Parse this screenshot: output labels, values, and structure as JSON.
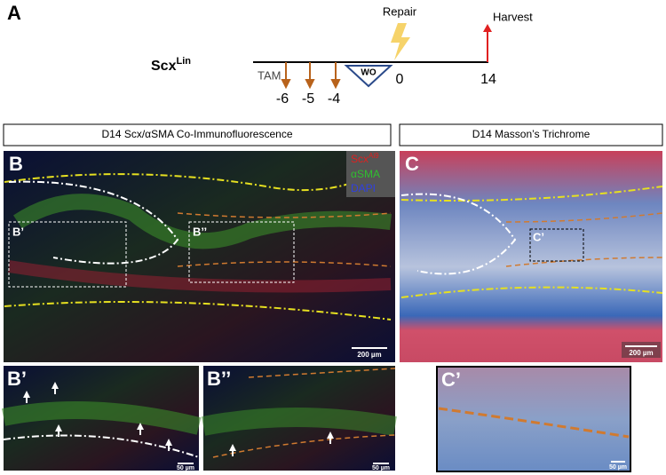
{
  "panel_a": {
    "label": "A",
    "mouse": "Scx",
    "mouse_sup": "Lin",
    "tam": "TAM",
    "days": [
      "-6",
      "-5",
      "-4"
    ],
    "washout": "WO",
    "repair": "Repair",
    "repair_day": "0",
    "harvest": "Harvest",
    "harvest_day": "14"
  },
  "panel_b": {
    "header": "D14 Scx/αSMA Co-Immunofluorescence",
    "label": "B",
    "legend": [
      {
        "name": "Scx",
        "sup": "Ai9"
      },
      {
        "name": "αSMA"
      },
      {
        "name": "DAPI"
      }
    ],
    "insets": [
      "B’",
      "B’’"
    ],
    "scale_bar": "200 µm"
  },
  "panel_b_zoom": [
    {
      "label": "B’",
      "scale_bar": "50 µm"
    },
    {
      "label": "B’’",
      "scale_bar": "50 µm"
    }
  ],
  "panel_c": {
    "header": "D14 Masson’s Trichrome",
    "label": "C",
    "inset": "C’",
    "scale_bar": "200 µm"
  },
  "panel_c_zoom": {
    "label": "C’",
    "scale_bar": "50 µm"
  }
}
